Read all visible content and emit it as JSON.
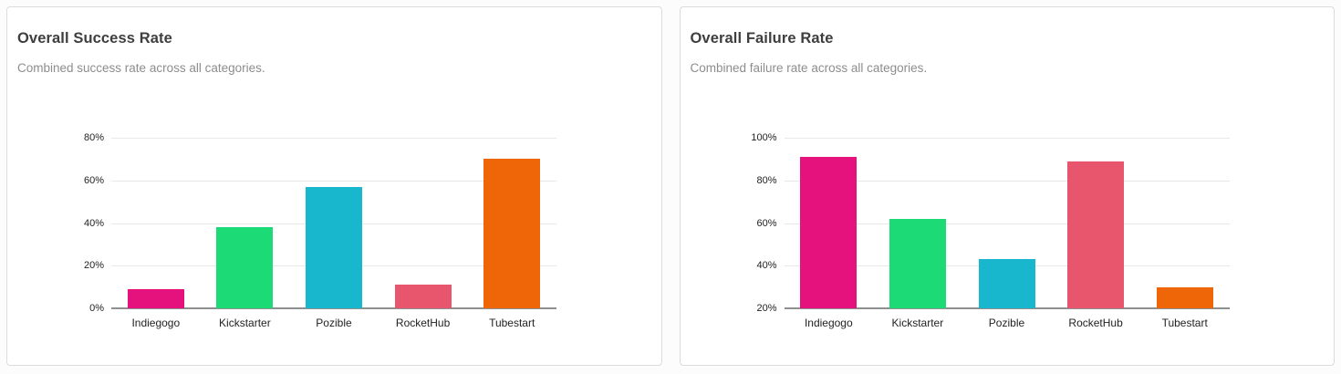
{
  "cards": [
    {
      "title": "Overall Success Rate",
      "subtitle": "Combined success rate across all categories."
    },
    {
      "title": "Overall Failure Rate",
      "subtitle": "Combined failure rate across all categories."
    }
  ],
  "chart_data": [
    {
      "type": "bar",
      "title": "Overall Success Rate",
      "categories": [
        "Indiegogo",
        "Kickstarter",
        "Pozible",
        "RocketHub",
        "Tubestart"
      ],
      "values": [
        9,
        38,
        57,
        11,
        70
      ],
      "bar_colors": [
        "#E5127D",
        "#1CDB77",
        "#19B7CE",
        "#E8566E",
        "#EE6608"
      ],
      "ylim": [
        0,
        80
      ],
      "ytick_step": 20,
      "ytick_labels": [
        "0%",
        "20%",
        "40%",
        "60%",
        "80%"
      ],
      "ytick_suffix": "%",
      "xlabel": "",
      "ylabel": "",
      "grid": true,
      "legend": "none"
    },
    {
      "type": "bar",
      "title": "Overall Failure Rate",
      "categories": [
        "Indiegogo",
        "Kickstarter",
        "Pozible",
        "RocketHub",
        "Tubestart"
      ],
      "values": [
        91,
        62,
        43,
        89,
        30
      ],
      "bar_colors": [
        "#E5127D",
        "#1CDB77",
        "#19B7CE",
        "#E8566E",
        "#EE6608"
      ],
      "ylim": [
        20,
        100
      ],
      "ytick_step": 20,
      "ytick_labels": [
        "20%",
        "40%",
        "60%",
        "80%",
        "100%"
      ],
      "ytick_suffix": "%",
      "xlabel": "",
      "ylabel": "",
      "grid": true,
      "legend": "none"
    }
  ]
}
